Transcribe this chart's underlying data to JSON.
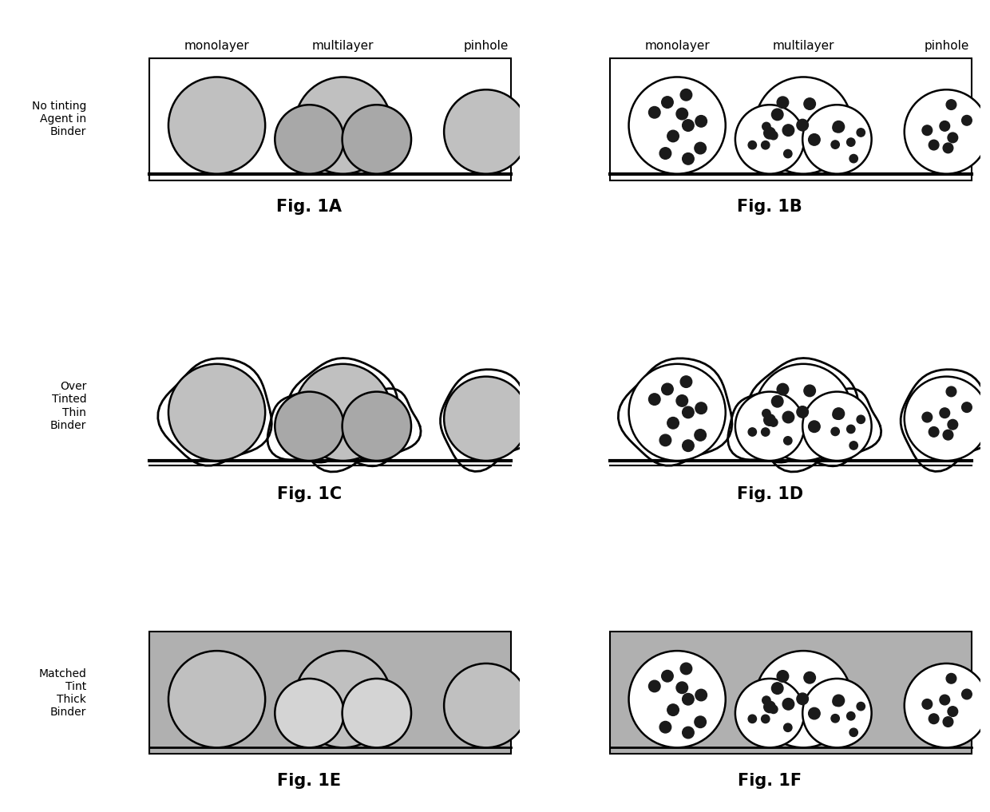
{
  "sphere_color_light": "#c0c0c0",
  "sphere_color_medium": "#a8a8a8",
  "dot_color": "#1a1a1a",
  "binder_color_thick": "#b0b0b0",
  "binder_color_thin_outline": "#222222",
  "background": "#ffffff",
  "fig_label_fontsize": 15,
  "col_label_fontsize": 11,
  "row_label_fontsize": 10,
  "panels": [
    {
      "name": "Fig. 1A",
      "has_dots": false,
      "binder": "none"
    },
    {
      "name": "Fig. 1B",
      "has_dots": true,
      "binder": "none"
    },
    {
      "name": "Fig. 1C",
      "has_dots": false,
      "binder": "thin"
    },
    {
      "name": "Fig. 1D",
      "has_dots": true,
      "binder": "thin"
    },
    {
      "name": "Fig. 1E",
      "has_dots": false,
      "binder": "thick"
    },
    {
      "name": "Fig. 1F",
      "has_dots": true,
      "binder": "thick"
    }
  ],
  "row_labels": [
    "No tinting\nAgent in\nBinder",
    "Over\nTinted\nThin\nBinder",
    "Matched\nTint\nThick\nBinder"
  ],
  "col_labels": [
    "monolayer",
    "multilayer",
    "pinhole"
  ]
}
